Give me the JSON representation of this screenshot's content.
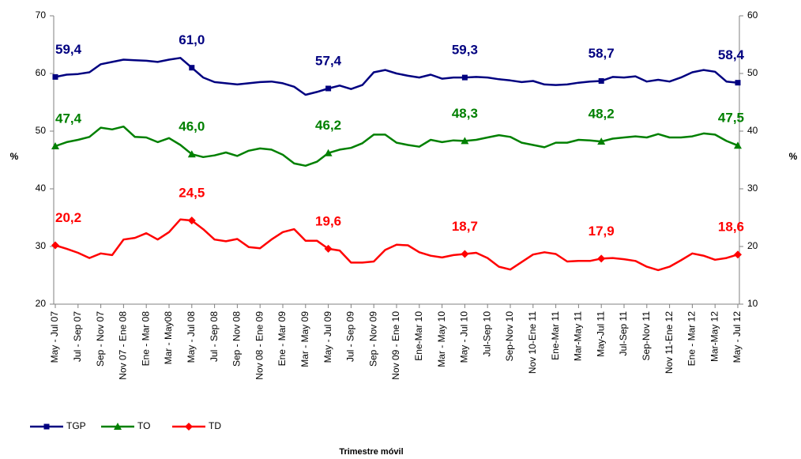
{
  "chart_data": {
    "type": "line",
    "categories": [
      "May - Jul 07",
      null,
      "Jul - Sep 07",
      null,
      "Sep - Nov 07",
      null,
      "Nov 07 - Ene 08",
      null,
      "Ene - Mar 08",
      null,
      "Mar - May08",
      null,
      "May - Jul 08",
      null,
      "Jul - Sep 08",
      null,
      "Sep - Nov 08",
      null,
      "Nov 08 - Ene 09",
      null,
      "Ene - Mar 09",
      null,
      "Mar - May 09",
      null,
      "May - Jul 09",
      null,
      "Jul - Sep 09",
      null,
      "Sep - Nov 09",
      null,
      "Nov 09 - Ene 10",
      null,
      "Ene-Mar 10",
      null,
      "Mar - May 10",
      null,
      "May - Jul 10",
      null,
      "Jul-Sep 10",
      null,
      "Sep-Nov 10",
      null,
      "Nov 10-Ene 11",
      null,
      "Ene-Mar 11",
      null,
      "Mar-May 11",
      null,
      "May-Jul 11",
      null,
      "Jul-Sep 11",
      null,
      "Sep-Nov 11",
      null,
      "Nov 11-Ene 12",
      null,
      "Ene - Mar 12",
      null,
      "Mar-May 12",
      null,
      "May - Jul 12"
    ],
    "series": [
      {
        "name": "TGP",
        "color": "#000080",
        "marker": "square",
        "values": [
          59.4,
          59.8,
          59.9,
          60.2,
          61.6,
          62.0,
          62.4,
          62.3,
          62.2,
          62.0,
          62.4,
          62.7,
          61.0,
          59.3,
          58.5,
          58.3,
          58.1,
          58.3,
          58.5,
          58.6,
          58.3,
          57.7,
          56.3,
          56.8,
          57.4,
          57.9,
          57.3,
          58.0,
          60.2,
          60.6,
          60.0,
          59.6,
          59.3,
          59.8,
          59.1,
          59.3,
          59.3,
          59.4,
          59.3,
          59.0,
          58.8,
          58.5,
          58.7,
          58.1,
          58.0,
          58.1,
          58.4,
          58.6,
          58.7,
          59.4,
          59.3,
          59.5,
          58.6,
          58.9,
          58.6,
          59.3,
          60.2,
          60.6,
          60.3,
          58.6,
          58.4
        ],
        "value_labels": [
          "59,4",
          null,
          null,
          null,
          null,
          null,
          null,
          null,
          null,
          null,
          null,
          null,
          "61,0",
          null,
          null,
          null,
          null,
          null,
          null,
          null,
          null,
          null,
          null,
          null,
          "57,4",
          null,
          null,
          null,
          null,
          null,
          null,
          null,
          null,
          null,
          null,
          null,
          "59,3",
          null,
          null,
          null,
          null,
          null,
          null,
          null,
          null,
          null,
          null,
          null,
          "58,7",
          null,
          null,
          null,
          null,
          null,
          null,
          null,
          null,
          null,
          null,
          null,
          "58,4"
        ]
      },
      {
        "name": "TO",
        "color": "#008000",
        "marker": "triangle",
        "values": [
          47.4,
          48.1,
          48.5,
          49.0,
          50.6,
          50.3,
          50.8,
          49.0,
          48.9,
          48.1,
          48.8,
          47.6,
          46.0,
          45.5,
          45.8,
          46.3,
          45.7,
          46.6,
          47.0,
          46.8,
          45.9,
          44.4,
          44.0,
          44.7,
          46.2,
          46.8,
          47.1,
          47.9,
          49.4,
          49.4,
          48.0,
          47.6,
          47.3,
          48.5,
          48.1,
          48.4,
          48.3,
          48.5,
          48.9,
          49.3,
          49.0,
          48.0,
          47.6,
          47.2,
          48.0,
          48.0,
          48.5,
          48.4,
          48.2,
          48.7,
          48.9,
          49.1,
          48.9,
          49.5,
          48.9,
          48.9,
          49.1,
          49.6,
          49.4,
          48.3,
          47.5
        ],
        "value_labels": [
          "47,4",
          null,
          null,
          null,
          null,
          null,
          null,
          null,
          null,
          null,
          null,
          null,
          "46,0",
          null,
          null,
          null,
          null,
          null,
          null,
          null,
          null,
          null,
          null,
          null,
          "46,2",
          null,
          null,
          null,
          null,
          null,
          null,
          null,
          null,
          null,
          null,
          null,
          "48,3",
          null,
          null,
          null,
          null,
          null,
          null,
          null,
          null,
          null,
          null,
          null,
          "48,2",
          null,
          null,
          null,
          null,
          null,
          null,
          null,
          null,
          null,
          null,
          null,
          "47,5"
        ]
      },
      {
        "name": "TD",
        "color": "#ff0000",
        "marker": "diamond",
        "values": [
          30.2,
          29.6,
          28.9,
          28.0,
          28.8,
          28.5,
          31.2,
          31.5,
          32.3,
          31.2,
          32.5,
          34.7,
          34.5,
          33.0,
          31.2,
          30.9,
          31.3,
          29.9,
          29.7,
          31.2,
          32.5,
          33.0,
          31.0,
          31.0,
          29.6,
          29.3,
          27.2,
          27.2,
          27.4,
          29.4,
          30.3,
          30.2,
          29.0,
          28.4,
          28.1,
          28.5,
          28.7,
          28.9,
          28.0,
          26.5,
          26.0,
          27.3,
          28.6,
          29.0,
          28.7,
          27.4,
          27.5,
          27.5,
          27.9,
          28.0,
          27.8,
          27.5,
          26.5,
          25.9,
          26.5,
          27.6,
          28.8,
          28.4,
          27.7,
          28.0,
          28.6
        ],
        "value_labels": [
          "20,2",
          null,
          null,
          null,
          null,
          null,
          null,
          null,
          null,
          null,
          null,
          null,
          "24,5",
          null,
          null,
          null,
          null,
          null,
          null,
          null,
          null,
          null,
          null,
          null,
          "19,6",
          null,
          null,
          null,
          null,
          null,
          null,
          null,
          null,
          null,
          null,
          null,
          "18,7",
          null,
          null,
          null,
          null,
          null,
          null,
          null,
          null,
          null,
          null,
          null,
          "17,9",
          null,
          null,
          null,
          null,
          null,
          null,
          null,
          null,
          null,
          null,
          null,
          "18,6"
        ]
      }
    ],
    "ylim": [
      20,
      70
    ],
    "yticks": [
      20,
      30,
      40,
      50,
      60,
      70
    ],
    "y2lim": [
      10,
      60
    ],
    "y2ticks": [
      10,
      20,
      30,
      40,
      50,
      60
    ],
    "ylabel": "%",
    "y2label": "%",
    "xlabel": "Trimestre móvil",
    "legend": "bottom-left",
    "grid": false
  }
}
